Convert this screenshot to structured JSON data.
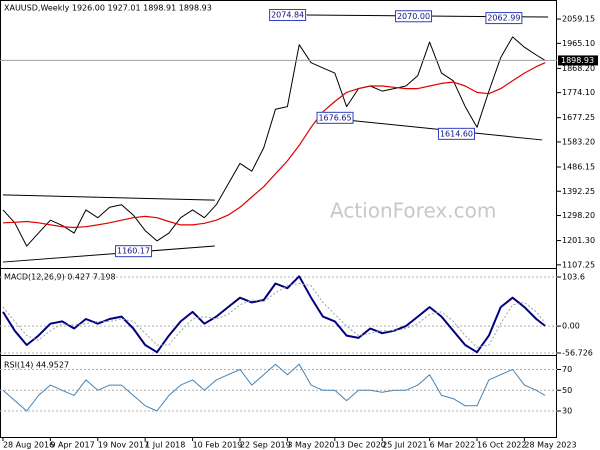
{
  "chart_data": [
    {
      "type": "line",
      "title": "XAUUSD,Weekly  1926.00 1927.01 1898.91 1898.93",
      "watermark": "ActionForex.com",
      "x": [
        0,
        8,
        16,
        24,
        32,
        40,
        48,
        56,
        64,
        72,
        80,
        88,
        96,
        104,
        112,
        120,
        128,
        136,
        144,
        152,
        160,
        168,
        176,
        184,
        192,
        200,
        208,
        216,
        224,
        232,
        240,
        248,
        256,
        264,
        272,
        280,
        288,
        296,
        304,
        312,
        320,
        328,
        336,
        344,
        352,
        360,
        366
      ],
      "series": [
        {
          "color": "#000000",
          "width": 1,
          "values": [
            1320,
            1270,
            1180,
            1230,
            1280,
            1260,
            1230,
            1320,
            1290,
            1330,
            1340,
            1300,
            1240,
            1200,
            1230,
            1290,
            1320,
            1290,
            1340,
            1420,
            1500,
            1470,
            1560,
            1710,
            1720,
            1960,
            1890,
            1870,
            1850,
            1720,
            1790,
            1800,
            1780,
            1790,
            1800,
            1840,
            1970,
            1850,
            1820,
            1720,
            1640,
            1780,
            1910,
            1990,
            1950,
            1920,
            1899
          ]
        },
        {
          "color": "#e00000",
          "width": 1.2,
          "values": [
            1270,
            1272,
            1275,
            1270,
            1262,
            1255,
            1252,
            1255,
            1262,
            1270,
            1280,
            1290,
            1295,
            1290,
            1275,
            1262,
            1262,
            1268,
            1280,
            1300,
            1330,
            1370,
            1410,
            1460,
            1510,
            1570,
            1640,
            1700,
            1740,
            1775,
            1790,
            1800,
            1800,
            1795,
            1790,
            1790,
            1800,
            1810,
            1815,
            1800,
            1775,
            1770,
            1790,
            1820,
            1850,
            1875,
            1890
          ]
        }
      ],
      "xlim": [
        -2,
        374
      ],
      "ylim": [
        1095,
        2133
      ],
      "yticks": [
        {
          "value": 2059.15,
          "label": "2059.15"
        },
        {
          "value": 1965.1,
          "label": "1965.10"
        },
        {
          "value": 1868.2,
          "label": "1868.20"
        },
        {
          "value": 1774.1,
          "label": "1774.10"
        },
        {
          "value": 1677.25,
          "label": "1677.25"
        },
        {
          "value": 1583.2,
          "label": "1583.20"
        },
        {
          "value": 1486.15,
          "label": "1486.15"
        },
        {
          "value": 1392.25,
          "label": "1392.25"
        },
        {
          "value": 1298.2,
          "label": "1298.20"
        },
        {
          "value": 1201.3,
          "label": "1201.30"
        },
        {
          "value": 1107.25,
          "label": "1107.25"
        }
      ],
      "grid": false,
      "last_price": 1898.93,
      "trendlines": [
        {
          "x": [
            205,
            368
          ],
          "y": [
            2075,
            2067
          ]
        },
        {
          "x": [
            212,
            364
          ],
          "y": [
            1680,
            1591
          ]
        },
        {
          "x": [
            0,
            143
          ],
          "y": [
            1378,
            1358
          ]
        },
        {
          "x": [
            0,
            143
          ],
          "y": [
            1118,
            1180
          ]
        }
      ],
      "annotations": [
        {
          "x": 180,
          "value": 2074.84
        },
        {
          "x": 265,
          "value": 2070,
          "label": "2070.00"
        },
        {
          "x": 326,
          "value": 2062.99
        },
        {
          "x": 212,
          "value": 1676.65
        },
        {
          "x": 294,
          "value": 1614.6,
          "label": "1614.60"
        },
        {
          "x": 76,
          "value": 1160.17
        }
      ]
    },
    {
      "type": "line",
      "title": "MACD(12,26,9) 0.427 7.198",
      "x": [
        0,
        8,
        16,
        24,
        32,
        40,
        48,
        56,
        64,
        72,
        80,
        88,
        96,
        104,
        112,
        120,
        128,
        136,
        144,
        152,
        160,
        168,
        176,
        184,
        192,
        200,
        208,
        216,
        224,
        232,
        240,
        248,
        256,
        264,
        272,
        280,
        288,
        296,
        304,
        312,
        320,
        328,
        336,
        344,
        352,
        360,
        366
      ],
      "series": [
        {
          "color": "#000080",
          "width": 2,
          "values": [
            30,
            -10,
            -40,
            -20,
            5,
            10,
            -5,
            15,
            5,
            15,
            20,
            -5,
            -40,
            -55,
            -20,
            10,
            30,
            5,
            20,
            40,
            60,
            50,
            55,
            90,
            80,
            105,
            60,
            20,
            10,
            -20,
            -25,
            -5,
            -15,
            -10,
            0,
            20,
            40,
            20,
            -10,
            -40,
            -55,
            -20,
            40,
            60,
            40,
            15,
            0.427
          ]
        },
        {
          "color": "#a0a0a0",
          "width": 1,
          "style": "dotted",
          "values": [
            40,
            10,
            -20,
            -30,
            -10,
            5,
            2,
            5,
            10,
            10,
            15,
            10,
            -15,
            -40,
            -40,
            -10,
            15,
            20,
            15,
            25,
            45,
            55,
            52,
            70,
            85,
            90,
            85,
            50,
            25,
            0,
            -20,
            -15,
            -10,
            -10,
            -5,
            5,
            25,
            30,
            10,
            -20,
            -45,
            -40,
            5,
            45,
            50,
            30,
            7.198
          ]
        }
      ],
      "xlim": [
        -2,
        374
      ],
      "ylim": [
        -61,
        120.5
      ],
      "yticks": [
        103.6,
        {
          "value": 0,
          "label": "0.00"
        },
        -56.726
      ],
      "grid": true
    },
    {
      "type": "line",
      "title": "RSI(14) 44.9527",
      "x": [
        0,
        8,
        16,
        24,
        32,
        40,
        48,
        56,
        64,
        72,
        80,
        88,
        96,
        104,
        112,
        120,
        128,
        136,
        144,
        152,
        160,
        168,
        176,
        184,
        192,
        200,
        208,
        216,
        224,
        232,
        240,
        248,
        256,
        264,
        272,
        280,
        288,
        296,
        304,
        312,
        320,
        328,
        336,
        344,
        352,
        360,
        366
      ],
      "series": [
        {
          "color": "#4682b4",
          "width": 1,
          "values": [
            50,
            40,
            30,
            45,
            55,
            50,
            45,
            60,
            50,
            55,
            55,
            45,
            35,
            30,
            45,
            55,
            60,
            50,
            60,
            65,
            70,
            55,
            65,
            75,
            65,
            75,
            55,
            50,
            50,
            40,
            50,
            50,
            48,
            50,
            50,
            55,
            65,
            45,
            42,
            35,
            35,
            60,
            65,
            70,
            55,
            50,
            44.9527
          ]
        }
      ],
      "xlim": [
        -2,
        374
      ],
      "ylim": [
        4,
        83
      ],
      "yticks": [
        70,
        50,
        30
      ],
      "grid": true,
      "xticks": [
        {
          "value": 0,
          "label": "28 Aug 2016"
        },
        {
          "value": 32,
          "label": "9 Apr 2017"
        },
        {
          "value": 64,
          "label": "19 Nov 2017"
        },
        {
          "value": 96,
          "label": "1 Jul 2018"
        },
        {
          "value": 128,
          "label": "10 Feb 2019"
        },
        {
          "value": 160,
          "label": "22 Sep 2019"
        },
        {
          "value": 192,
          "label": "3 May 2020"
        },
        {
          "value": 224,
          "label": "13 Dec 2020"
        },
        {
          "value": 256,
          "label": "25 Jul 2021"
        },
        {
          "value": 288,
          "label": "6 Mar 2022"
        },
        {
          "value": 320,
          "label": "16 Oct 2022"
        },
        {
          "value": 352,
          "label": "28 May 2023"
        }
      ]
    }
  ]
}
